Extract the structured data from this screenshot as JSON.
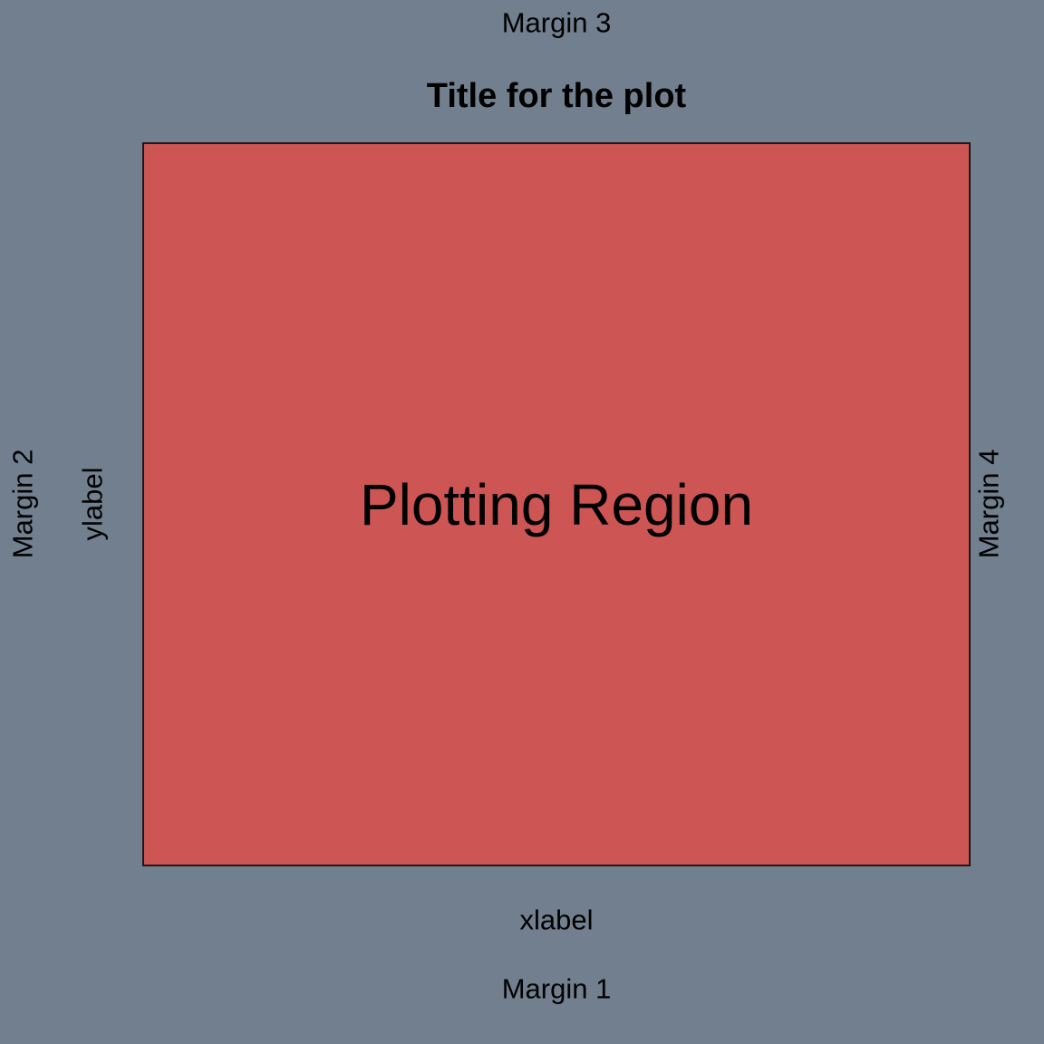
{
  "colors": {
    "background": "#717f8e",
    "plot_region_fill": "#cd5655",
    "plot_region_border": "#1a1a1a",
    "text": "#000000"
  },
  "title": "Title for the plot",
  "plot_region_label": "Plotting Region",
  "xlabel": "xlabel",
  "ylabel": "ylabel",
  "margins": {
    "bottom": "Margin 1",
    "left": "Margin 2",
    "top": "Margin 3",
    "right": "Margin 4"
  }
}
